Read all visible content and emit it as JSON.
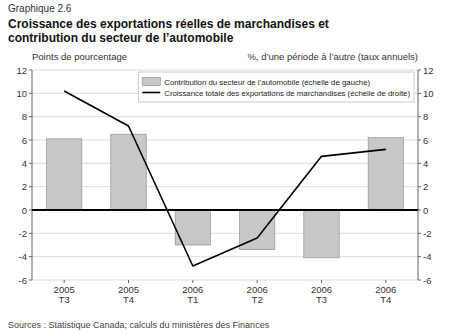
{
  "chart_data": {
    "type": "bar",
    "subtitle": "Graphique 2.6",
    "title": "Croissance des exportations réelles de marchandises et\ncontribution du secteur de l’automobile",
    "ylabel": "Points de pourcentage",
    "y2label": "%, d’une période à l’autre (taux annuels)",
    "source": "Sources : Statistique Canada; calculs du ministères des Finances",
    "categories": [
      "2005\nT3",
      "2005\nT4",
      "2006\nT1",
      "2006\nT2",
      "2006\nT3",
      "2006\nT4"
    ],
    "series": [
      {
        "name": "Contribution du secteur de l’automobile (échelle de gauche)",
        "type": "bar",
        "color": "#c8c8c8",
        "values": [
          6.1,
          6.5,
          -3.0,
          -3.4,
          -4.1,
          6.2
        ]
      },
      {
        "name": "Croissance totale des exportations de marchandises (échelle de droite)",
        "type": "line",
        "color": "#000000",
        "axis": "y2",
        "values": [
          10.2,
          7.2,
          -4.8,
          -2.4,
          4.6,
          5.2
        ]
      }
    ],
    "ylim": [
      -6,
      12
    ],
    "yticks": [
      -6,
      -4,
      -2,
      0,
      2,
      4,
      6,
      8,
      10,
      12
    ],
    "y2lim": [
      -6,
      12
    ],
    "y2ticks": [
      -6,
      -4,
      -2,
      0,
      2,
      4,
      6,
      8,
      10,
      12
    ],
    "grid": true,
    "legend": "upper right"
  }
}
